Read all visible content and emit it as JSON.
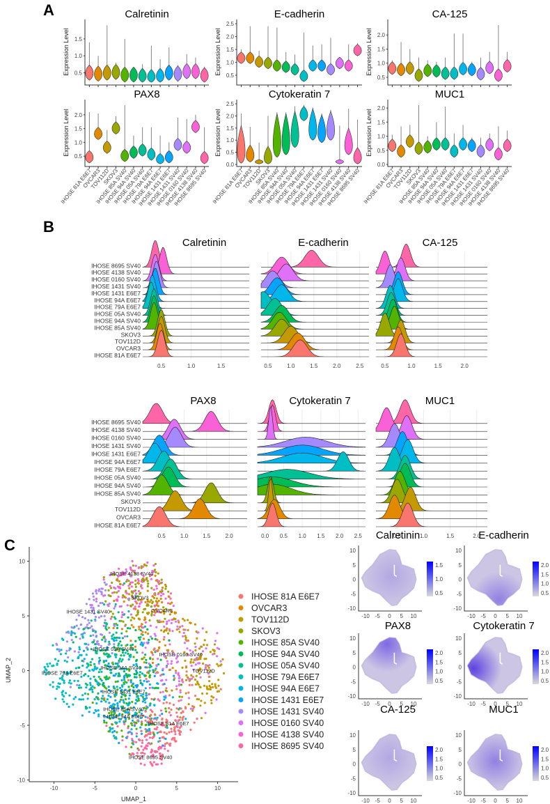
{
  "panel_labels": {
    "a": "A",
    "b": "B",
    "c": "C"
  },
  "cell_lines": [
    "IHOSE 81A E6E7",
    "OVCAR3",
    "TOV112D",
    "SKOV3",
    "IHOSE 85A SV40",
    "IHOSE 94A SV40",
    "IHOSE 05A SV40",
    "IHOSE 79A E6E7",
    "IHOSE 94A E6E7",
    "IHOSE 1431 E6E7",
    "IHOSE 1431 SV40",
    "IHOSE 0160 SV40",
    "IHOSE 4138 SV40",
    "IHOSE 8695 SV40"
  ],
  "colors": [
    "#F8766D",
    "#E38900",
    "#C49A00",
    "#99A800",
    "#53B400",
    "#00BC56",
    "#00C094",
    "#00BFC4",
    "#00B6EB",
    "#06A4FF",
    "#A58AFF",
    "#DF70F8",
    "#FB61D7",
    "#FF66A8"
  ],
  "chart_data": [
    {
      "type": "violin",
      "panel": "A",
      "ylabel": "Expression Level",
      "markers": [
        {
          "title": "Calretinin",
          "ylim": [
            0.2,
            1.95
          ],
          "yticks": [
            "0.5",
            "1.0",
            "1.5"
          ],
          "median": [
            0.48,
            0.45,
            0.48,
            0.5,
            0.42,
            0.42,
            0.38,
            0.35,
            0.38,
            0.48,
            0.45,
            0.52,
            0.52,
            0.4
          ],
          "max": [
            1.4,
            1.0,
            1.9,
            0.8,
            1.5,
            0.6,
            0.75,
            1.3,
            0.9,
            1.25,
            0.72,
            1.05,
            0.95,
            0.68
          ]
        },
        {
          "title": "E-cadherin",
          "ylim": [
            0.2,
            2.5
          ],
          "yticks": [
            "0.5",
            "1.0",
            "1.5",
            "2.0",
            "2.5"
          ],
          "median": [
            1.15,
            1.15,
            1.0,
            0.95,
            0.85,
            0.8,
            0.7,
            0.45,
            0.85,
            0.85,
            0.7,
            0.95,
            0.85,
            1.45
          ],
          "max": [
            1.5,
            2.4,
            1.45,
            2.4,
            2.35,
            1.4,
            1.3,
            2.15,
            1.65,
            1.7,
            1.95,
            1.2,
            1.7,
            1.75
          ]
        },
        {
          "title": "CA-125",
          "ylim": [
            0.3,
            2.4
          ],
          "yticks": [
            "0.5",
            "1.0",
            "1.5",
            "2.0"
          ],
          "median": [
            0.8,
            0.75,
            0.8,
            0.55,
            0.72,
            0.7,
            0.62,
            0.62,
            0.78,
            0.75,
            0.6,
            0.82,
            0.55,
            0.88
          ],
          "max": [
            1.1,
            1.75,
            1.5,
            1.2,
            1.1,
            1.05,
            1.2,
            2.05,
            2.05,
            1.05,
            1.2,
            1.4,
            2.35,
            1.4
          ]
        },
        {
          "title": "PAX8",
          "ylim": [
            0.2,
            2.4
          ],
          "yticks": [
            "0.5",
            "1.0",
            "1.5",
            "2.0"
          ],
          "median": [
            0.45,
            1.3,
            0.8,
            1.5,
            0.5,
            0.62,
            0.7,
            0.55,
            0.35,
            0.45,
            0.9,
            0.8,
            1.55,
            0.42
          ],
          "max": [
            2.1,
            2.05,
            1.45,
            1.95,
            2.35,
            1.25,
            1.55,
            1.55,
            1.25,
            1.0,
            1.9,
            1.85,
            2.0,
            1.55
          ]
        },
        {
          "title": "Cytokeratin 7",
          "ylim": [
            0.0,
            2.5
          ],
          "yticks": [
            "0.0",
            "0.5",
            "1.0",
            "1.5",
            "2.0",
            "2.5"
          ],
          "median": [
            0.25,
            0.3,
            0.1,
            0.15,
            0.5,
            0.6,
            0.9,
            2.0,
            1.2,
            1.1,
            1.2,
            0.12,
            0.6,
            0.2
          ],
          "max": [
            2.1,
            1.55,
            0.9,
            2.0,
            2.15,
            2.15,
            2.4,
            2.45,
            2.35,
            2.1,
            2.25,
            1.6,
            2.3,
            1.85
          ],
          "body_high": [
            1.6,
            0.8,
            0.2,
            0.75,
            2.1,
            2.1,
            2.2,
            2.4,
            2.3,
            2.05,
            2.2,
            0.2,
            1.5,
            0.7
          ]
        },
        {
          "title": "MUC1",
          "ylim": [
            0.0,
            2.15
          ],
          "yticks": [
            "0.0",
            "0.5",
            "1.0",
            "1.5",
            "2.0"
          ],
          "median": [
            0.65,
            0.45,
            0.8,
            0.55,
            0.6,
            0.7,
            0.7,
            0.45,
            0.7,
            0.65,
            0.45,
            0.68,
            0.35,
            0.65
          ],
          "max": [
            1.05,
            1.35,
            1.4,
            2.1,
            1.0,
            1.5,
            2.05,
            1.1,
            1.4,
            0.95,
            0.95,
            1.1,
            1.35,
            1.2
          ]
        }
      ]
    },
    {
      "type": "ridge",
      "panel": "B",
      "markers": [
        {
          "title": "Calretinin",
          "xlim": [
            0.19,
            1.97
          ],
          "xticks": [
            "0.5",
            "1.0",
            "1.5"
          ],
          "peak": [
            0.5,
            0.48,
            0.5,
            0.5,
            0.38,
            0.38,
            0.38,
            0.33,
            0.35,
            0.4,
            0.42,
            0.4,
            0.53,
            0.4
          ],
          "sd": 0.06
        },
        {
          "title": "E-cadherin",
          "xlim": [
            0.35,
            2.7
          ],
          "xticks": [
            "0.5",
            "1.0",
            "1.5",
            "2.0",
            "2.5"
          ],
          "peak": [
            1.2,
            1.15,
            1.0,
            0.8,
            0.75,
            0.8,
            0.65,
            0.4,
            0.8,
            0.7,
            0.6,
            0.9,
            0.8,
            1.45
          ],
          "sd": 0.15
        },
        {
          "title": "CA-125",
          "xlim": [
            0.33,
            2.43
          ],
          "xticks": [
            "0.5",
            "1.0",
            "1.5",
            "2.0"
          ],
          "peak": [
            0.8,
            0.75,
            0.8,
            0.5,
            0.68,
            0.65,
            0.62,
            0.6,
            0.75,
            0.75,
            0.6,
            0.8,
            0.5,
            0.9
          ],
          "sd": 0.08
        },
        {
          "title": "PAX8",
          "xlim": [
            0.08,
            2.4
          ],
          "xticks": [
            "0.5",
            "1.0",
            "1.5",
            "2.0"
          ],
          "peak": [
            0.45,
            1.35,
            0.8,
            1.6,
            0.5,
            0.65,
            0.7,
            0.55,
            0.35,
            0.45,
            0.8,
            0.78,
            1.6,
            0.38
          ],
          "sd": 0.14
        },
        {
          "title": "Cytokeratin 7",
          "xlim": [
            -0.2,
            2.7
          ],
          "xticks": [
            "0.0",
            "0.5",
            "1.0",
            "1.5",
            "2.0",
            "2.5"
          ],
          "peak": [
            0.2,
            0.25,
            0.15,
            0.15,
            0.2,
            0.2,
            0.6,
            2.1,
            1.0,
            1.0,
            1.1,
            0.15,
            0.2,
            0.2
          ],
          "sd": [
            0.1,
            0.15,
            0.05,
            0.08,
            0.5,
            0.55,
            0.6,
            0.15,
            0.55,
            0.55,
            0.55,
            0.05,
            0.08,
            0.1
          ]
        },
        {
          "title": "MUC1",
          "xlim": [
            0.1,
            2.2
          ],
          "xticks": [
            "0.5",
            "1.0",
            "1.5",
            "2.0"
          ],
          "peak": [
            0.7,
            0.45,
            0.75,
            0.5,
            0.55,
            0.65,
            0.65,
            0.45,
            0.7,
            0.6,
            0.45,
            0.68,
            0.3,
            0.65
          ],
          "sd": 0.1
        }
      ]
    },
    {
      "type": "scatter",
      "panel": "C",
      "xlabel": "UMAP_1",
      "ylabel": "UMAP_2",
      "xlim": [
        -12.5,
        13.2
      ],
      "ylim": [
        -10.3,
        11.3
      ],
      "xticks": [
        -10,
        -5,
        0,
        5,
        10
      ],
      "yticks": [
        -10,
        -5,
        0,
        5,
        10
      ],
      "legend_position": "right",
      "cluster_centers": [
        [
          4,
          -4.8
        ],
        [
          3.2,
          5.5
        ],
        [
          8.3,
          0
        ],
        [
          0.5,
          6.7
        ],
        [
          -1.5,
          -3.5
        ],
        [
          -1.8,
          0.3
        ],
        [
          -2.7,
          2
        ],
        [
          -9,
          -0.2
        ],
        [
          -1.5,
          -3.75
        ],
        [
          -1.5,
          -1.9
        ],
        [
          -5.8,
          5.4
        ],
        [
          5.5,
          1.5
        ],
        [
          -0.5,
          8.9
        ],
        [
          1.8,
          -7.9
        ]
      ]
    },
    {
      "type": "feature_scatter",
      "panel": "C",
      "xticks": [
        "-10",
        "-5",
        "0",
        "5",
        "10"
      ],
      "yticks": [
        "10",
        "5",
        "0",
        "-5",
        "-10"
      ],
      "low_color": "#D9D9D9",
      "high_color": "#0000FF",
      "plots": [
        {
          "title": "Calretinin",
          "legend_ticks": [
            "1.5",
            "1.0",
            "0.5"
          ],
          "high_region": [
            1,
            1
          ],
          "intensity": 0.2
        },
        {
          "title": "E-cadherin",
          "legend_ticks": [
            "2.0",
            "1.5",
            "1.0",
            "0.5"
          ],
          "high_region": [
            1.5,
            -7
          ],
          "intensity": 0.45
        },
        {
          "title": "PAX8",
          "legend_ticks": [
            "2.0",
            "1.5",
            "1.0",
            "0.5"
          ],
          "high_region": [
            -1,
            8
          ],
          "intensity": 0.6
        },
        {
          "title": "Cytokeratin 7",
          "legend_ticks": [
            "2.0",
            "1.5",
            "1.0",
            "0.5"
          ],
          "high_region": [
            -9,
            -0.5
          ],
          "intensity": 0.85
        },
        {
          "title": "CA-125",
          "legend_ticks": [
            "2.0",
            "1.5",
            "1.0",
            "0.5"
          ],
          "high_region": [
            0,
            2
          ],
          "intensity": 0.2
        },
        {
          "title": "MUC1",
          "legend_ticks": [
            "2.0",
            "1.5",
            "1.0",
            "0.5"
          ],
          "high_region": [
            0,
            1
          ],
          "intensity": 0.45
        }
      ]
    }
  ]
}
